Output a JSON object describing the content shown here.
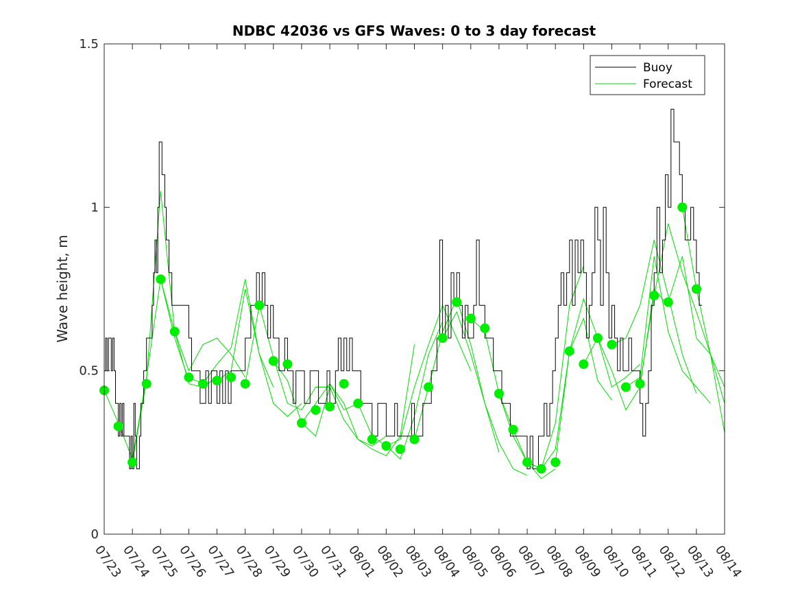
{
  "chart_data": {
    "type": "line",
    "title": "NDBC 42036 vs GFS Waves: 0 to 3 day forecast",
    "xlabel": "",
    "ylabel": "Wave height, m",
    "xlim": [
      0,
      22
    ],
    "ylim": [
      0,
      1.5
    ],
    "x_tick_labels": [
      "07/23",
      "07/24",
      "07/25",
      "07/26",
      "07/27",
      "07/28",
      "07/29",
      "07/30",
      "07/31",
      "08/01",
      "08/02",
      "08/03",
      "08/04",
      "08/05",
      "08/06",
      "08/07",
      "08/08",
      "08/09",
      "08/10",
      "08/11",
      "08/12",
      "08/13",
      "08/14"
    ],
    "y_ticks": [
      0,
      0.5,
      1,
      1.5
    ],
    "y_tick_labels": [
      "0",
      "0.5",
      "1",
      "1.5"
    ],
    "grid": false,
    "legend_position": "top-right",
    "legend": [
      "Buoy",
      "Forecast"
    ],
    "colors": {
      "buoy": "#000000",
      "forecast": "#00dd00",
      "analysis_markers": "#00ee00"
    },
    "buoy": {
      "name": "Buoy",
      "x": [
        0.0,
        0.05,
        0.1,
        0.15,
        0.2,
        0.25,
        0.3,
        0.35,
        0.4,
        0.45,
        0.5,
        0.55,
        0.6,
        0.65,
        0.7,
        0.75,
        0.8,
        0.85,
        0.9,
        0.95,
        1.0,
        1.05,
        1.1,
        1.15,
        1.2,
        1.25,
        1.3,
        1.4,
        1.5,
        1.6,
        1.7,
        1.75,
        1.8,
        1.85,
        1.9,
        1.95,
        2.0,
        2.05,
        2.1,
        2.15,
        2.2,
        2.3,
        2.4,
        2.5,
        2.6,
        2.7,
        2.8,
        2.9,
        3.0,
        3.1,
        3.2,
        3.3,
        3.4,
        3.5,
        3.6,
        3.7,
        3.8,
        3.9,
        4.0,
        4.1,
        4.2,
        4.3,
        4.4,
        4.5,
        4.6,
        4.7,
        4.8,
        4.9,
        5.0,
        5.1,
        5.2,
        5.3,
        5.4,
        5.5,
        5.6,
        5.7,
        5.8,
        5.9,
        6.0,
        6.1,
        6.2,
        6.3,
        6.4,
        6.5,
        6.6,
        6.7,
        6.8,
        6.9,
        7.0,
        7.1,
        7.2,
        7.3,
        7.4,
        7.5,
        7.6,
        7.7,
        7.8,
        7.9,
        8.0,
        8.1,
        8.2,
        8.3,
        8.4,
        8.5,
        8.6,
        8.7,
        8.8,
        8.9,
        9.0,
        9.1,
        9.2,
        9.3,
        9.4,
        9.5,
        9.6,
        9.7,
        9.8,
        9.9,
        10.0,
        10.1,
        10.2,
        10.3,
        10.4,
        10.5,
        10.6,
        10.7,
        10.8,
        10.9,
        11.0,
        11.1,
        11.2,
        11.3,
        11.4,
        11.5,
        11.6,
        11.7,
        11.8,
        11.9,
        12.0,
        12.1,
        12.2,
        12.3,
        12.4,
        12.5,
        12.6,
        12.7,
        12.8,
        12.9,
        13.0,
        13.1,
        13.2,
        13.3,
        13.4,
        13.5,
        13.6,
        13.7,
        13.8,
        13.9,
        14.0,
        14.1,
        14.2,
        14.3,
        14.4,
        14.5,
        14.6,
        14.7,
        14.8,
        14.9,
        15.0,
        15.1,
        15.2,
        15.3,
        15.4,
        15.5,
        15.6,
        15.7,
        15.8,
        15.9,
        16.0,
        16.1,
        16.2,
        16.3,
        16.4,
        16.5,
        16.6,
        16.7,
        16.8,
        16.9,
        17.0,
        17.1,
        17.2,
        17.3,
        17.4,
        17.5,
        17.6,
        17.7,
        17.8,
        17.9,
        18.0,
        18.1,
        18.2,
        18.3,
        18.4,
        18.5,
        18.6,
        18.7,
        18.8,
        18.9,
        19.0,
        19.1,
        19.2,
        19.3,
        19.4,
        19.5,
        19.6,
        19.7,
        19.8,
        19.9,
        20.0,
        20.1,
        20.2,
        20.3,
        20.4,
        20.5,
        20.6,
        20.7,
        20.8,
        20.9,
        21.0,
        21.1,
        21.2
      ],
      "y": [
        0.5,
        0.6,
        0.5,
        0.6,
        0.6,
        0.5,
        0.6,
        0.5,
        0.4,
        0.4,
        0.3,
        0.4,
        0.3,
        0.4,
        0.3,
        0.3,
        0.3,
        0.3,
        0.2,
        0.3,
        0.2,
        0.4,
        0.3,
        0.2,
        0.2,
        0.3,
        0.4,
        0.5,
        0.6,
        0.6,
        0.7,
        0.8,
        0.9,
        0.8,
        1.0,
        1.2,
        1.2,
        1.1,
        1.1,
        1.0,
        0.9,
        0.8,
        0.7,
        0.7,
        0.7,
        0.7,
        0.7,
        0.7,
        0.6,
        0.5,
        0.5,
        0.5,
        0.4,
        0.4,
        0.5,
        0.4,
        0.5,
        0.5,
        0.4,
        0.5,
        0.4,
        0.5,
        0.4,
        0.5,
        0.5,
        0.5,
        0.5,
        0.5,
        0.6,
        0.6,
        0.7,
        0.7,
        0.8,
        0.7,
        0.8,
        0.7,
        0.6,
        0.7,
        0.6,
        0.6,
        0.5,
        0.5,
        0.6,
        0.5,
        0.5,
        0.4,
        0.5,
        0.5,
        0.5,
        0.4,
        0.4,
        0.5,
        0.5,
        0.5,
        0.4,
        0.4,
        0.4,
        0.5,
        0.4,
        0.4,
        0.5,
        0.6,
        0.5,
        0.6,
        0.5,
        0.6,
        0.5,
        0.5,
        0.5,
        0.4,
        0.4,
        0.4,
        0.4,
        0.3,
        0.3,
        0.4,
        0.4,
        0.4,
        0.3,
        0.3,
        0.3,
        0.4,
        0.3,
        0.3,
        0.3,
        0.3,
        0.3,
        0.4,
        0.3,
        0.3,
        0.3,
        0.4,
        0.4,
        0.4,
        0.5,
        0.5,
        0.6,
        0.9,
        0.6,
        0.7,
        0.6,
        0.8,
        0.7,
        0.8,
        0.7,
        0.6,
        0.7,
        0.6,
        0.6,
        0.7,
        0.9,
        0.7,
        0.7,
        0.6,
        0.6,
        0.6,
        0.5,
        0.5,
        0.5,
        0.4,
        0.4,
        0.4,
        0.3,
        0.3,
        0.3,
        0.3,
        0.3,
        0.3,
        0.2,
        0.3,
        0.2,
        0.2,
        0.3,
        0.3,
        0.4,
        0.3,
        0.4,
        0.5,
        0.6,
        0.7,
        0.8,
        0.7,
        0.8,
        0.9,
        0.7,
        0.9,
        0.8,
        0.9,
        0.8,
        0.6,
        0.7,
        0.8,
        1.0,
        0.9,
        0.7,
        1.0,
        0.8,
        0.6,
        0.7,
        0.6,
        0.5,
        0.6,
        0.5,
        0.5,
        0.6,
        0.5,
        0.5,
        0.5,
        0.4,
        0.3,
        0.4,
        0.5,
        0.7,
        0.8,
        1.0,
        0.8,
        0.9,
        1.1,
        1.0,
        1.3,
        1.2,
        1.2,
        1.1,
        1.0,
        0.9,
        0.9,
        1.0,
        0.9,
        0.8,
        0.7,
        0.7
      ]
    },
    "forecasts": [
      {
        "x": [
          0.0,
          0.5,
          1.0,
          1.5,
          2.0,
          2.5,
          3.0
        ],
        "y": [
          0.44,
          0.34,
          0.23,
          0.48,
          0.78,
          0.6,
          0.47
        ]
      },
      {
        "x": [
          1.0,
          1.5,
          2.0,
          2.5,
          3.0,
          3.5,
          4.0
        ],
        "y": [
          0.22,
          0.47,
          1.05,
          0.62,
          0.46,
          0.45,
          0.48
        ]
      },
      {
        "x": [
          2.0,
          2.5,
          3.0,
          3.5,
          4.0,
          4.5,
          5.0
        ],
        "y": [
          0.78,
          0.62,
          0.5,
          0.58,
          0.6,
          0.55,
          0.48
        ]
      },
      {
        "x": [
          3.0,
          3.5,
          4.0,
          4.5,
          5.0,
          5.5,
          6.0
        ],
        "y": [
          0.48,
          0.46,
          0.52,
          0.57,
          0.78,
          0.55,
          0.45
        ]
      },
      {
        "x": [
          4.0,
          4.5,
          5.0,
          5.5,
          6.0,
          6.5,
          7.0
        ],
        "y": [
          0.47,
          0.5,
          0.75,
          0.55,
          0.4,
          0.36,
          0.4
        ]
      },
      {
        "x": [
          5.0,
          5.5,
          6.0,
          6.5,
          7.0,
          7.5,
          8.0
        ],
        "y": [
          0.46,
          0.7,
          0.54,
          0.4,
          0.38,
          0.45,
          0.45
        ]
      },
      {
        "x": [
          6.0,
          6.5,
          7.0,
          7.5,
          8.0,
          8.5,
          9.0
        ],
        "y": [
          0.53,
          0.47,
          0.34,
          0.4,
          0.46,
          0.38,
          0.4
        ]
      },
      {
        "x": [
          7.0,
          7.5,
          8.0,
          8.5,
          9.0,
          9.5,
          10.0
        ],
        "y": [
          0.34,
          0.3,
          0.45,
          0.35,
          0.29,
          0.27,
          0.3
        ]
      },
      {
        "x": [
          8.0,
          8.5,
          9.0,
          9.5,
          10.0,
          10.5,
          11.0
        ],
        "y": [
          0.46,
          0.4,
          0.29,
          0.26,
          0.24,
          0.3,
          0.58
        ]
      },
      {
        "x": [
          9.0,
          9.5,
          10.0,
          10.5,
          11.0,
          11.5,
          12.0
        ],
        "y": [
          0.4,
          0.3,
          0.27,
          0.23,
          0.36,
          0.55,
          0.65
        ]
      },
      {
        "x": [
          10.0,
          10.5,
          11.0,
          11.5,
          12.0,
          12.5,
          13.0
        ],
        "y": [
          0.27,
          0.29,
          0.45,
          0.58,
          0.7,
          0.6,
          0.5
        ]
      },
      {
        "x": [
          11.0,
          11.5,
          12.0,
          12.5,
          13.0,
          13.5,
          14.0
        ],
        "y": [
          0.29,
          0.45,
          0.62,
          0.72,
          0.58,
          0.4,
          0.25
        ]
      },
      {
        "x": [
          12.0,
          12.5,
          13.0,
          13.5,
          14.0,
          14.5,
          15.0
        ],
        "y": [
          0.6,
          0.68,
          0.55,
          0.4,
          0.28,
          0.2,
          0.18
        ]
      },
      {
        "x": [
          13.0,
          13.5,
          14.0,
          14.5,
          15.0,
          15.5,
          16.0
        ],
        "y": [
          0.66,
          0.62,
          0.43,
          0.3,
          0.22,
          0.17,
          0.2
        ]
      },
      {
        "x": [
          14.0,
          14.5,
          15.0,
          15.5,
          16.0,
          16.5,
          17.0
        ],
        "y": [
          0.43,
          0.32,
          0.22,
          0.2,
          0.34,
          0.7,
          0.82
        ]
      },
      {
        "x": [
          15.0,
          15.5,
          16.0,
          16.5,
          17.0,
          17.5,
          18.0
        ],
        "y": [
          0.22,
          0.2,
          0.26,
          0.56,
          0.66,
          0.47,
          0.41
        ]
      },
      {
        "x": [
          16.0,
          16.5,
          17.0,
          17.5,
          18.0,
          18.5,
          19.0
        ],
        "y": [
          0.22,
          0.56,
          0.72,
          0.6,
          0.45,
          0.48,
          0.52
        ]
      },
      {
        "x": [
          17.0,
          17.5,
          18.0,
          18.5,
          19.0,
          19.5,
          20.0
        ],
        "y": [
          0.52,
          0.6,
          0.5,
          0.38,
          0.45,
          0.75,
          0.7
        ]
      },
      {
        "x": [
          18.0,
          18.5,
          19.0,
          19.5,
          20.0,
          20.5,
          21.0
        ],
        "y": [
          0.58,
          0.6,
          0.7,
          0.9,
          0.73,
          0.55,
          0.43
        ]
      },
      {
        "x": [
          18.5,
          19.0,
          19.5,
          20.0,
          20.5,
          21.0,
          21.5
        ],
        "y": [
          0.45,
          0.48,
          0.85,
          0.62,
          0.5,
          0.45,
          0.4
        ]
      },
      {
        "x": [
          19.0,
          19.5,
          20.0,
          20.5,
          21.0,
          21.5,
          22.0
        ],
        "y": [
          0.46,
          0.73,
          0.95,
          0.8,
          0.68,
          0.55,
          0.45
        ]
      },
      {
        "x": [
          20.0,
          20.5,
          21.0,
          21.5,
          22.0
        ],
        "y": [
          0.71,
          0.85,
          0.6,
          0.55,
          0.4
        ]
      },
      {
        "x": [
          20.5,
          21.0,
          21.5,
          22.0
        ],
        "y": [
          1.0,
          0.75,
          0.55,
          0.31
        ]
      }
    ],
    "analysis_points": {
      "x": [
        0.0,
        0.5,
        1.0,
        1.5,
        2.0,
        2.5,
        3.0,
        3.5,
        4.0,
        4.5,
        5.0,
        5.5,
        6.0,
        6.5,
        7.0,
        7.5,
        8.0,
        8.5,
        9.0,
        9.5,
        10.0,
        10.5,
        11.0,
        11.5,
        12.0,
        12.5,
        13.0,
        13.5,
        14.0,
        14.5,
        15.0,
        15.5,
        16.0,
        16.5,
        17.0,
        17.5,
        18.0,
        18.5,
        19.0,
        19.5,
        20.0,
        20.5,
        21.0
      ],
      "y": [
        0.44,
        0.33,
        0.22,
        0.46,
        0.78,
        0.62,
        0.48,
        0.46,
        0.47,
        0.48,
        0.46,
        0.7,
        0.53,
        0.52,
        0.34,
        0.38,
        0.39,
        0.46,
        0.4,
        0.29,
        0.27,
        0.26,
        0.29,
        0.45,
        0.6,
        0.71,
        0.66,
        0.63,
        0.43,
        0.32,
        0.22,
        0.2,
        0.22,
        0.56,
        0.52,
        0.6,
        0.58,
        0.45,
        0.46,
        0.73,
        0.71,
        1.0,
        0.75
      ]
    }
  }
}
